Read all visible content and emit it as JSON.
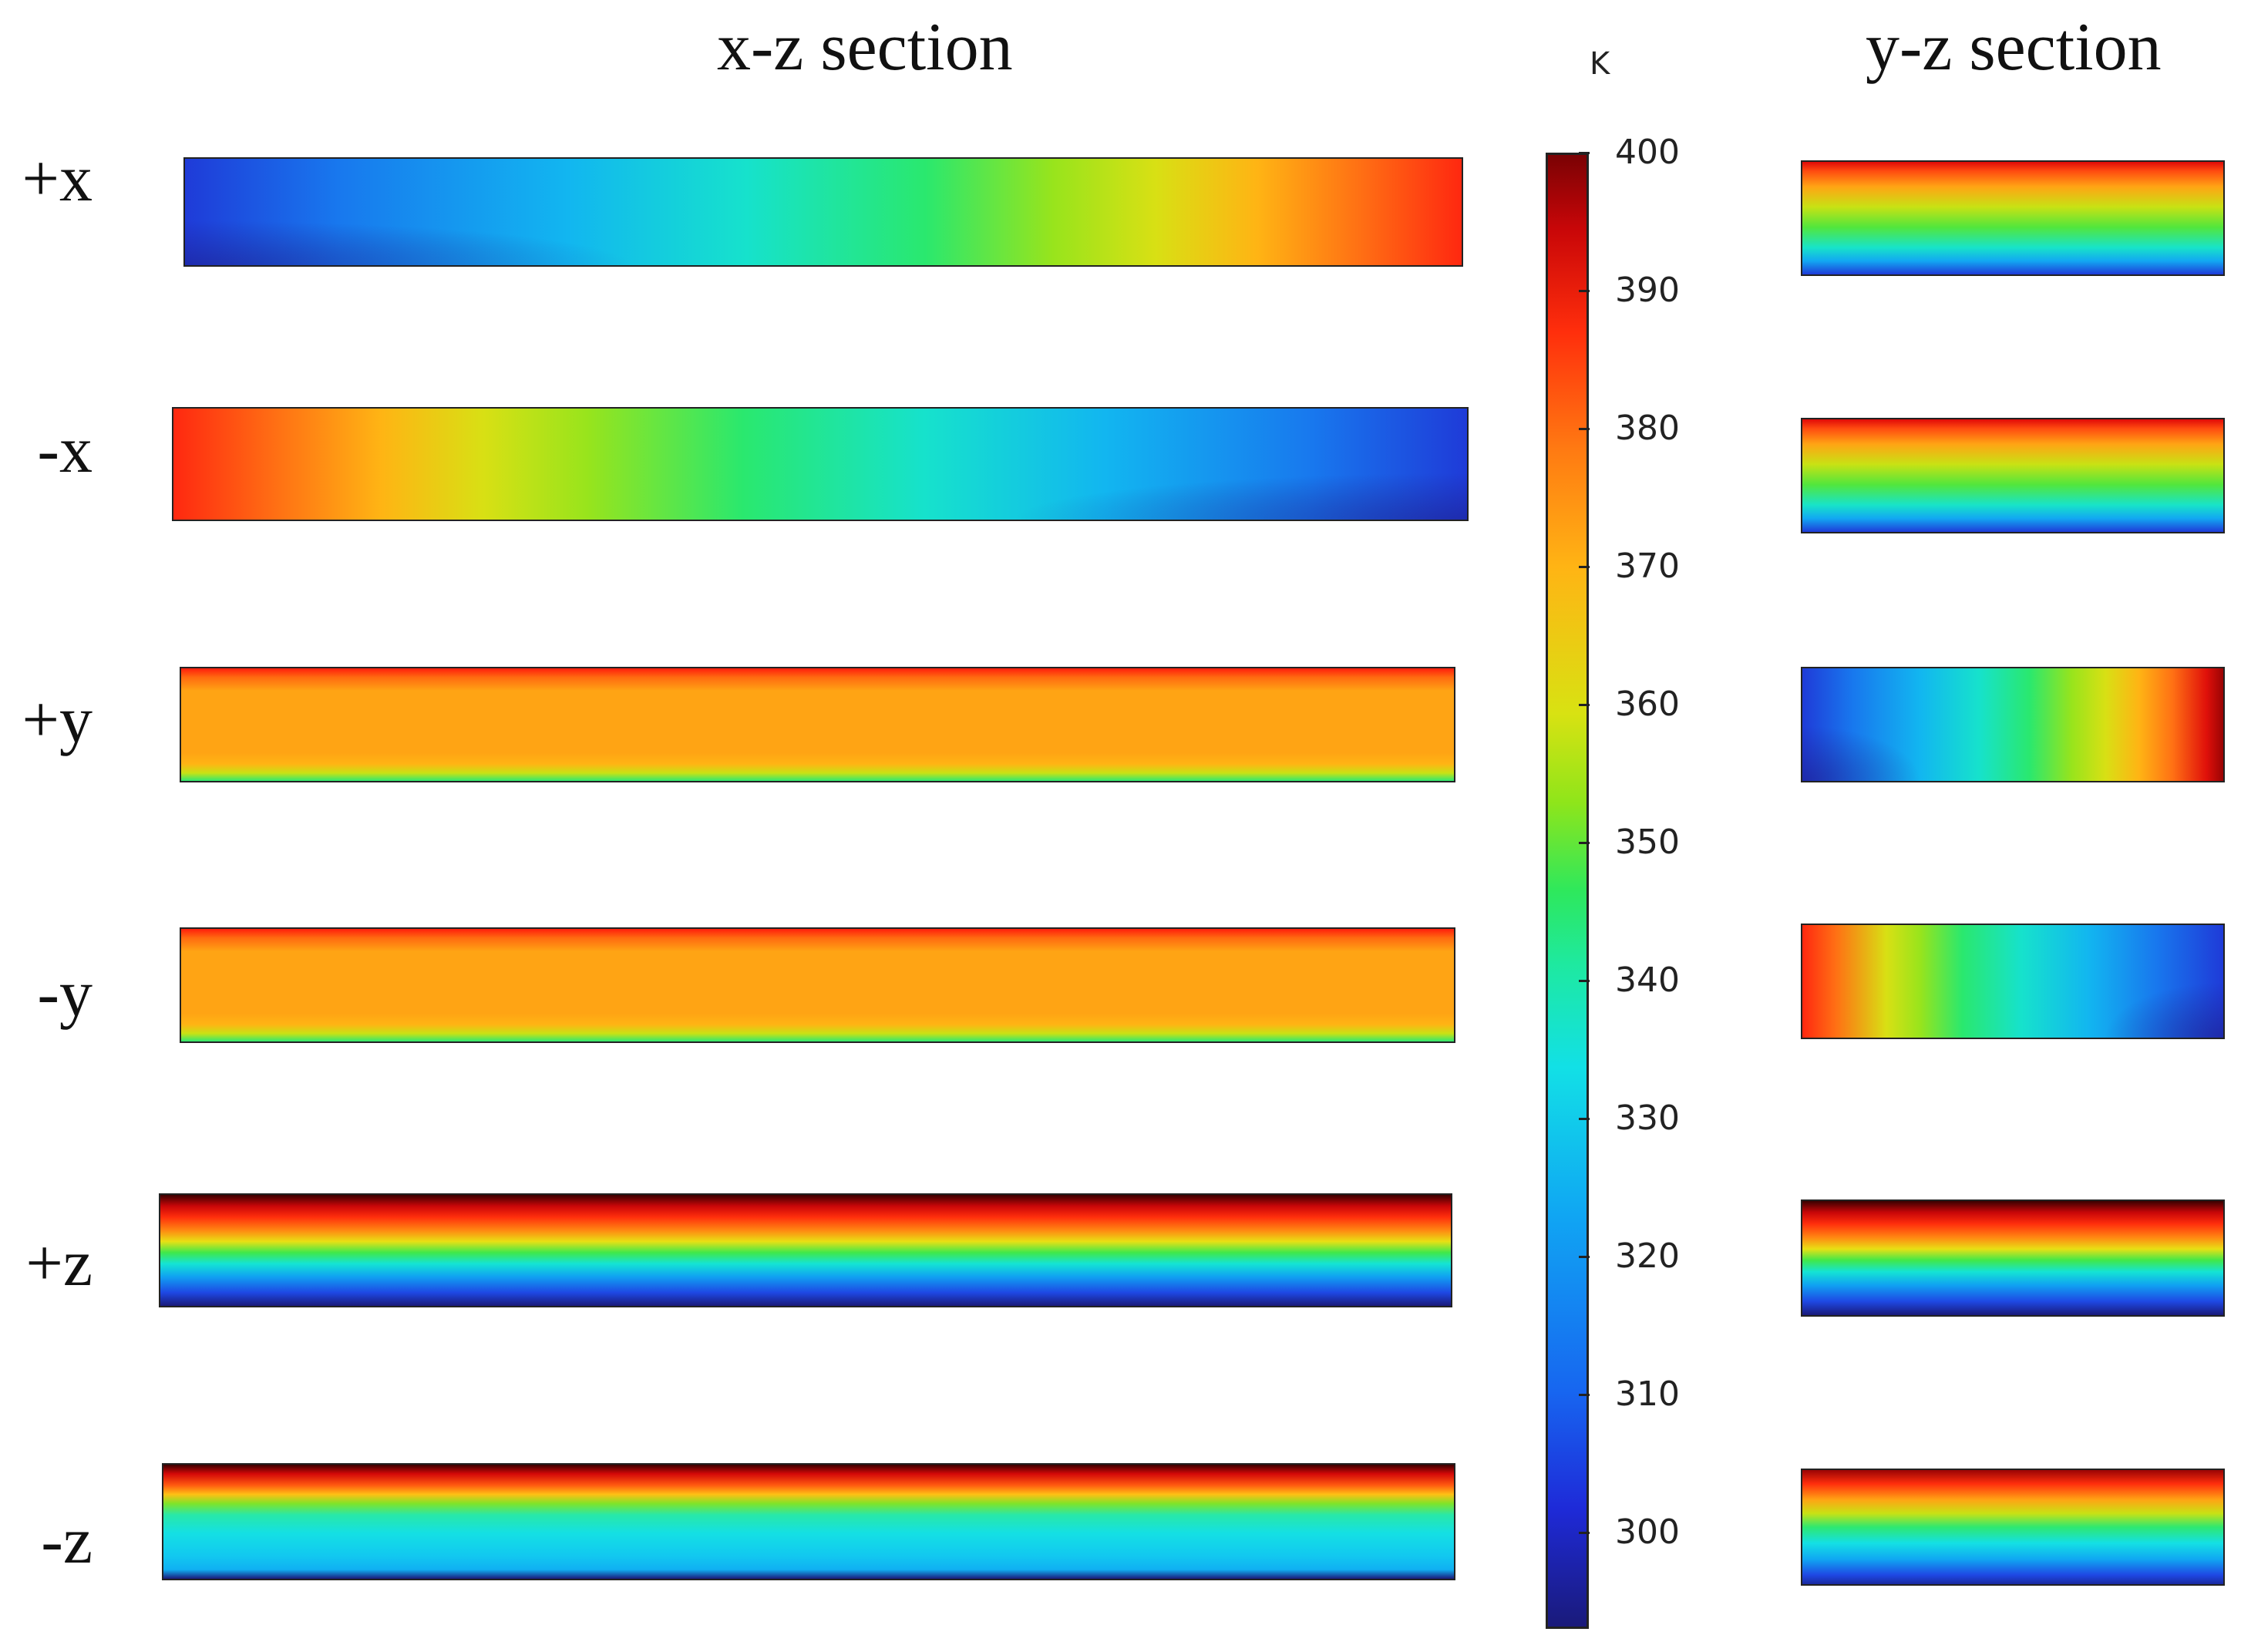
{
  "titles": {
    "xz": "x-z section",
    "yz": "y-z section"
  },
  "rows": [
    {
      "label": "+x"
    },
    {
      "label": "-x"
    },
    {
      "label": "+y"
    },
    {
      "label": "-y"
    },
    {
      "label": "+z"
    },
    {
      "label": "-z"
    }
  ],
  "colorbar": {
    "unit": "K",
    "min": 293,
    "max": 400,
    "ticks": [
      "400",
      "390",
      "380",
      "370",
      "360",
      "350",
      "340",
      "330",
      "320",
      "310",
      "300"
    ]
  }
}
